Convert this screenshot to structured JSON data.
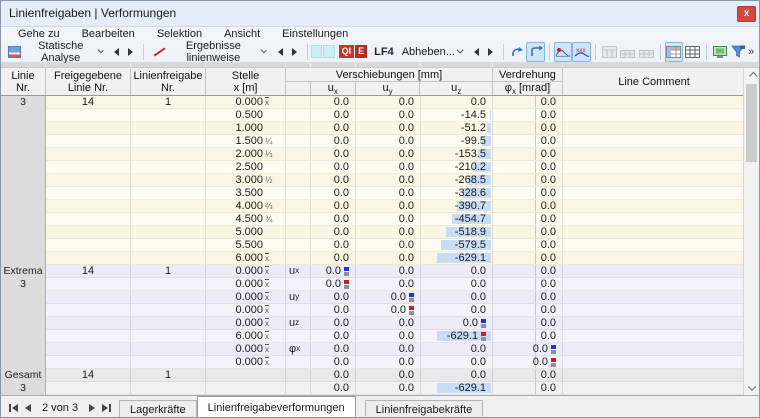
{
  "window": {
    "title": "Linienfreigaben | Verformungen",
    "close_glyph": "x"
  },
  "menubar": {
    "items": [
      "Gehe zu",
      "Bearbeiten",
      "Selektion",
      "Ansicht",
      "Einstellungen"
    ]
  },
  "toolbar": {
    "analysis_label": "Statische Analyse",
    "results_label": "Ergebnisse linienweise",
    "badge_parts": [
      "QI",
      "E"
    ],
    "load_case": "LF4",
    "lift_off_label": "Abheben...",
    "overflow_glyph": "»",
    "icons": [
      "static-analysis-icon",
      "line-results-icon",
      "undo-icon",
      "redo-icon",
      "result-diagram-icon",
      "result-values-icon",
      "table-icon",
      "subtable-icon",
      "subtable2-icon",
      "colored-table-icon",
      "grid-icon",
      "print-preview-icon",
      "filter-icon"
    ]
  },
  "table": {
    "header": {
      "line1": "Linie",
      "line2": "Nr.",
      "released1": "Freigegebene",
      "released2": "Linie Nr.",
      "release1": "Linienfreigabe",
      "release2": "Nr.",
      "loc1": "Stelle",
      "loc2": "x [m]",
      "displacements": "Verschiebungen [mm]",
      "rotation": "Verdrehung",
      "rotation_unit": "[mrad]",
      "comment": "Line Comment",
      "sub_u": "u",
      "sub_phi": "φ",
      "sub_x": "x",
      "sub_y": "y",
      "sub_z": "z"
    },
    "x_end_symbol": "x",
    "uz_max_abs": 629.1,
    "sections": [
      {
        "label": "3",
        "label2": "",
        "style": "cream",
        "rows": [
          {
            "released": "14",
            "release": "1",
            "x": "0.000",
            "end": true,
            "ux": "0.0",
            "uy": "0.0",
            "uz": "0.0",
            "phix": "0.0"
          },
          {
            "x": "0.500",
            "ux": "0.0",
            "uy": "0.0",
            "uz": "-14.5",
            "phix": "0.0"
          },
          {
            "x": "1.000",
            "ux": "0.0",
            "uy": "0.0",
            "uz": "-51.2",
            "phix": "0.0"
          },
          {
            "x": "1.500",
            "frac": "¼",
            "ux": "0.0",
            "uy": "0.0",
            "uz": "-99.5",
            "phix": "0.0"
          },
          {
            "x": "2.000",
            "frac": "⅓",
            "ux": "0.0",
            "uy": "0.0",
            "uz": "-153.5",
            "phix": "0.0"
          },
          {
            "x": "2.500",
            "ux": "0.0",
            "uy": "0.0",
            "uz": "-210.2",
            "phix": "0.0"
          },
          {
            "x": "3.000",
            "frac": "½",
            "ux": "0.0",
            "uy": "0.0",
            "uz": "-268.5",
            "phix": "0.0"
          },
          {
            "x": "3.500",
            "ux": "0.0",
            "uy": "0.0",
            "uz": "-328.6",
            "phix": "0.0"
          },
          {
            "x": "4.000",
            "frac": "⅔",
            "ux": "0.0",
            "uy": "0.0",
            "uz": "-390.7",
            "phix": "0.0"
          },
          {
            "x": "4.500",
            "frac": "¾",
            "ux": "0.0",
            "uy": "0.0",
            "uz": "-454.7",
            "phix": "0.0"
          },
          {
            "x": "5.000",
            "ux": "0.0",
            "uy": "0.0",
            "uz": "-518.9",
            "phix": "0.0"
          },
          {
            "x": "5.500",
            "ux": "0.0",
            "uy": "0.0",
            "uz": "-579.5",
            "phix": "0.0"
          },
          {
            "x": "6.000",
            "end": true,
            "ux": "0.0",
            "uy": "0.0",
            "uz": "-629.1",
            "phix": "0.0"
          }
        ]
      },
      {
        "label": "Extrema",
        "label2": "3",
        "style": "lav",
        "rows": [
          {
            "released": "14",
            "release": "1",
            "x": "0.000",
            "end": true,
            "lbl": "u",
            "lbls": "x",
            "mark": "ux+",
            "ux": "0.0",
            "uy": "0.0",
            "uz": "0.0",
            "phix": "0.0"
          },
          {
            "x": "0.000",
            "end": true,
            "mark": "ux-",
            "ux": "0.0",
            "uy": "0.0",
            "uz": "0.0",
            "phix": "0.0"
          },
          {
            "x": "0.000",
            "end": true,
            "lbl": "u",
            "lbls": "y",
            "mark": "uy+",
            "ux": "0.0",
            "uy": "0.0",
            "uz": "0.0",
            "phix": "0.0"
          },
          {
            "x": "0.000",
            "end": true,
            "mark": "uy-",
            "ux": "0.0",
            "uy": "0.0",
            "uz": "0.0",
            "phix": "0.0"
          },
          {
            "x": "0.000",
            "end": true,
            "lbl": "u",
            "lbls": "z",
            "mark": "uz+",
            "ux": "0.0",
            "uy": "0.0",
            "uz": "0.0",
            "phix": "0.0"
          },
          {
            "x": "6.000",
            "end": true,
            "mark": "uz-",
            "ux": "0.0",
            "uy": "0.0",
            "uz": "-629.1",
            "phix": "0.0"
          },
          {
            "x": "0.000",
            "end": true,
            "lbl": "φ",
            "lbls": "x",
            "mark": "phix+",
            "ux": "0.0",
            "uy": "0.0",
            "uz": "0.0",
            "phix": "0.0"
          },
          {
            "x": "0.000",
            "end": true,
            "mark": "phix-",
            "ux": "0.0",
            "uy": "0.0",
            "uz": "0.0",
            "phix": "0.0"
          }
        ]
      },
      {
        "label": "Gesamt",
        "label2": "3",
        "style": "gray",
        "rows": [
          {
            "released": "14",
            "release": "1",
            "ux": "0.0",
            "uy": "0.0",
            "uz": "0.0",
            "phix": "0.0"
          },
          {
            "ux": "0.0",
            "uy": "0.0",
            "uz": "-629.1",
            "phix": "0.0"
          }
        ]
      }
    ]
  },
  "footer": {
    "pager": "2 von 3",
    "tabs": [
      {
        "label": "Lagerkräfte",
        "active": false
      },
      {
        "label": "Linienfreigabeverformungen",
        "active": true
      },
      {
        "label": "Linienfreigabekräfte",
        "active": false
      }
    ]
  },
  "colors": {
    "max_marker": "#2733cf",
    "min_marker": "#c4231c",
    "value_bar": "#c9dcf5",
    "badge_red": "#c2392c",
    "close_red": "#cf4a41",
    "toolbar_highlight": "#cfe4f8",
    "row_cream": "#fbf6e4",
    "row_lavender": "#edebf7",
    "row_gray": "#e9e9e9"
  }
}
